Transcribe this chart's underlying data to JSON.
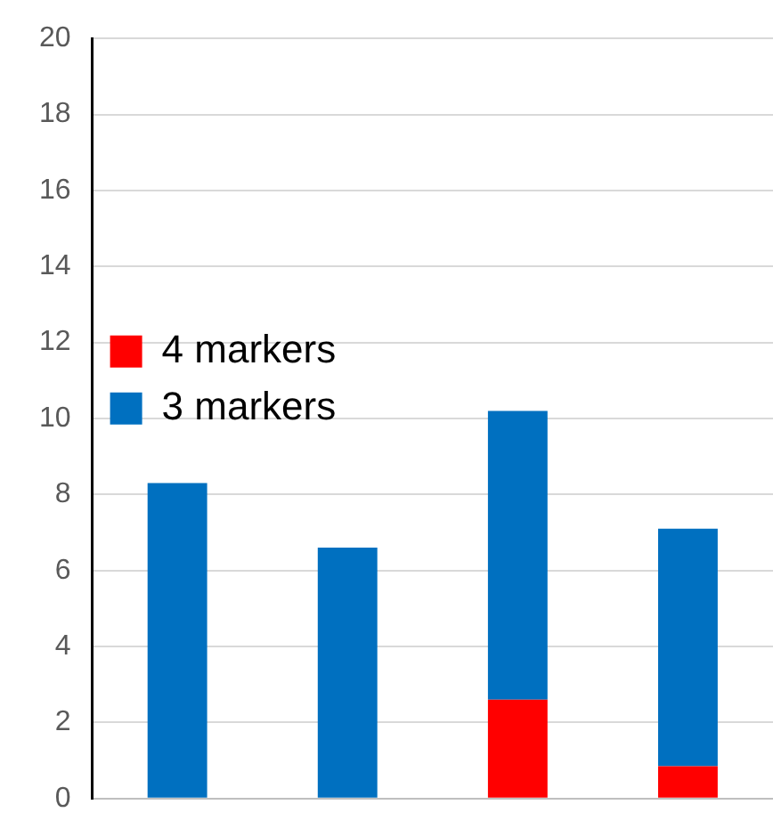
{
  "chart_data": {
    "type": "bar",
    "stacked": true,
    "categories": [
      null,
      null,
      null,
      null
    ],
    "series": [
      {
        "name": "4 markers",
        "color": "#ff0000",
        "values": [
          0,
          0,
          2.6,
          0.85
        ]
      },
      {
        "name": "3 markers",
        "color": "#0070c0",
        "values": [
          8.3,
          6.6,
          7.6,
          6.25
        ]
      }
    ],
    "ylim": [
      0,
      20
    ],
    "yticks": [
      0,
      2,
      4,
      6,
      8,
      10,
      12,
      14,
      16,
      18,
      20
    ],
    "grid": "y",
    "legend": "top",
    "tick_labels": "y"
  }
}
